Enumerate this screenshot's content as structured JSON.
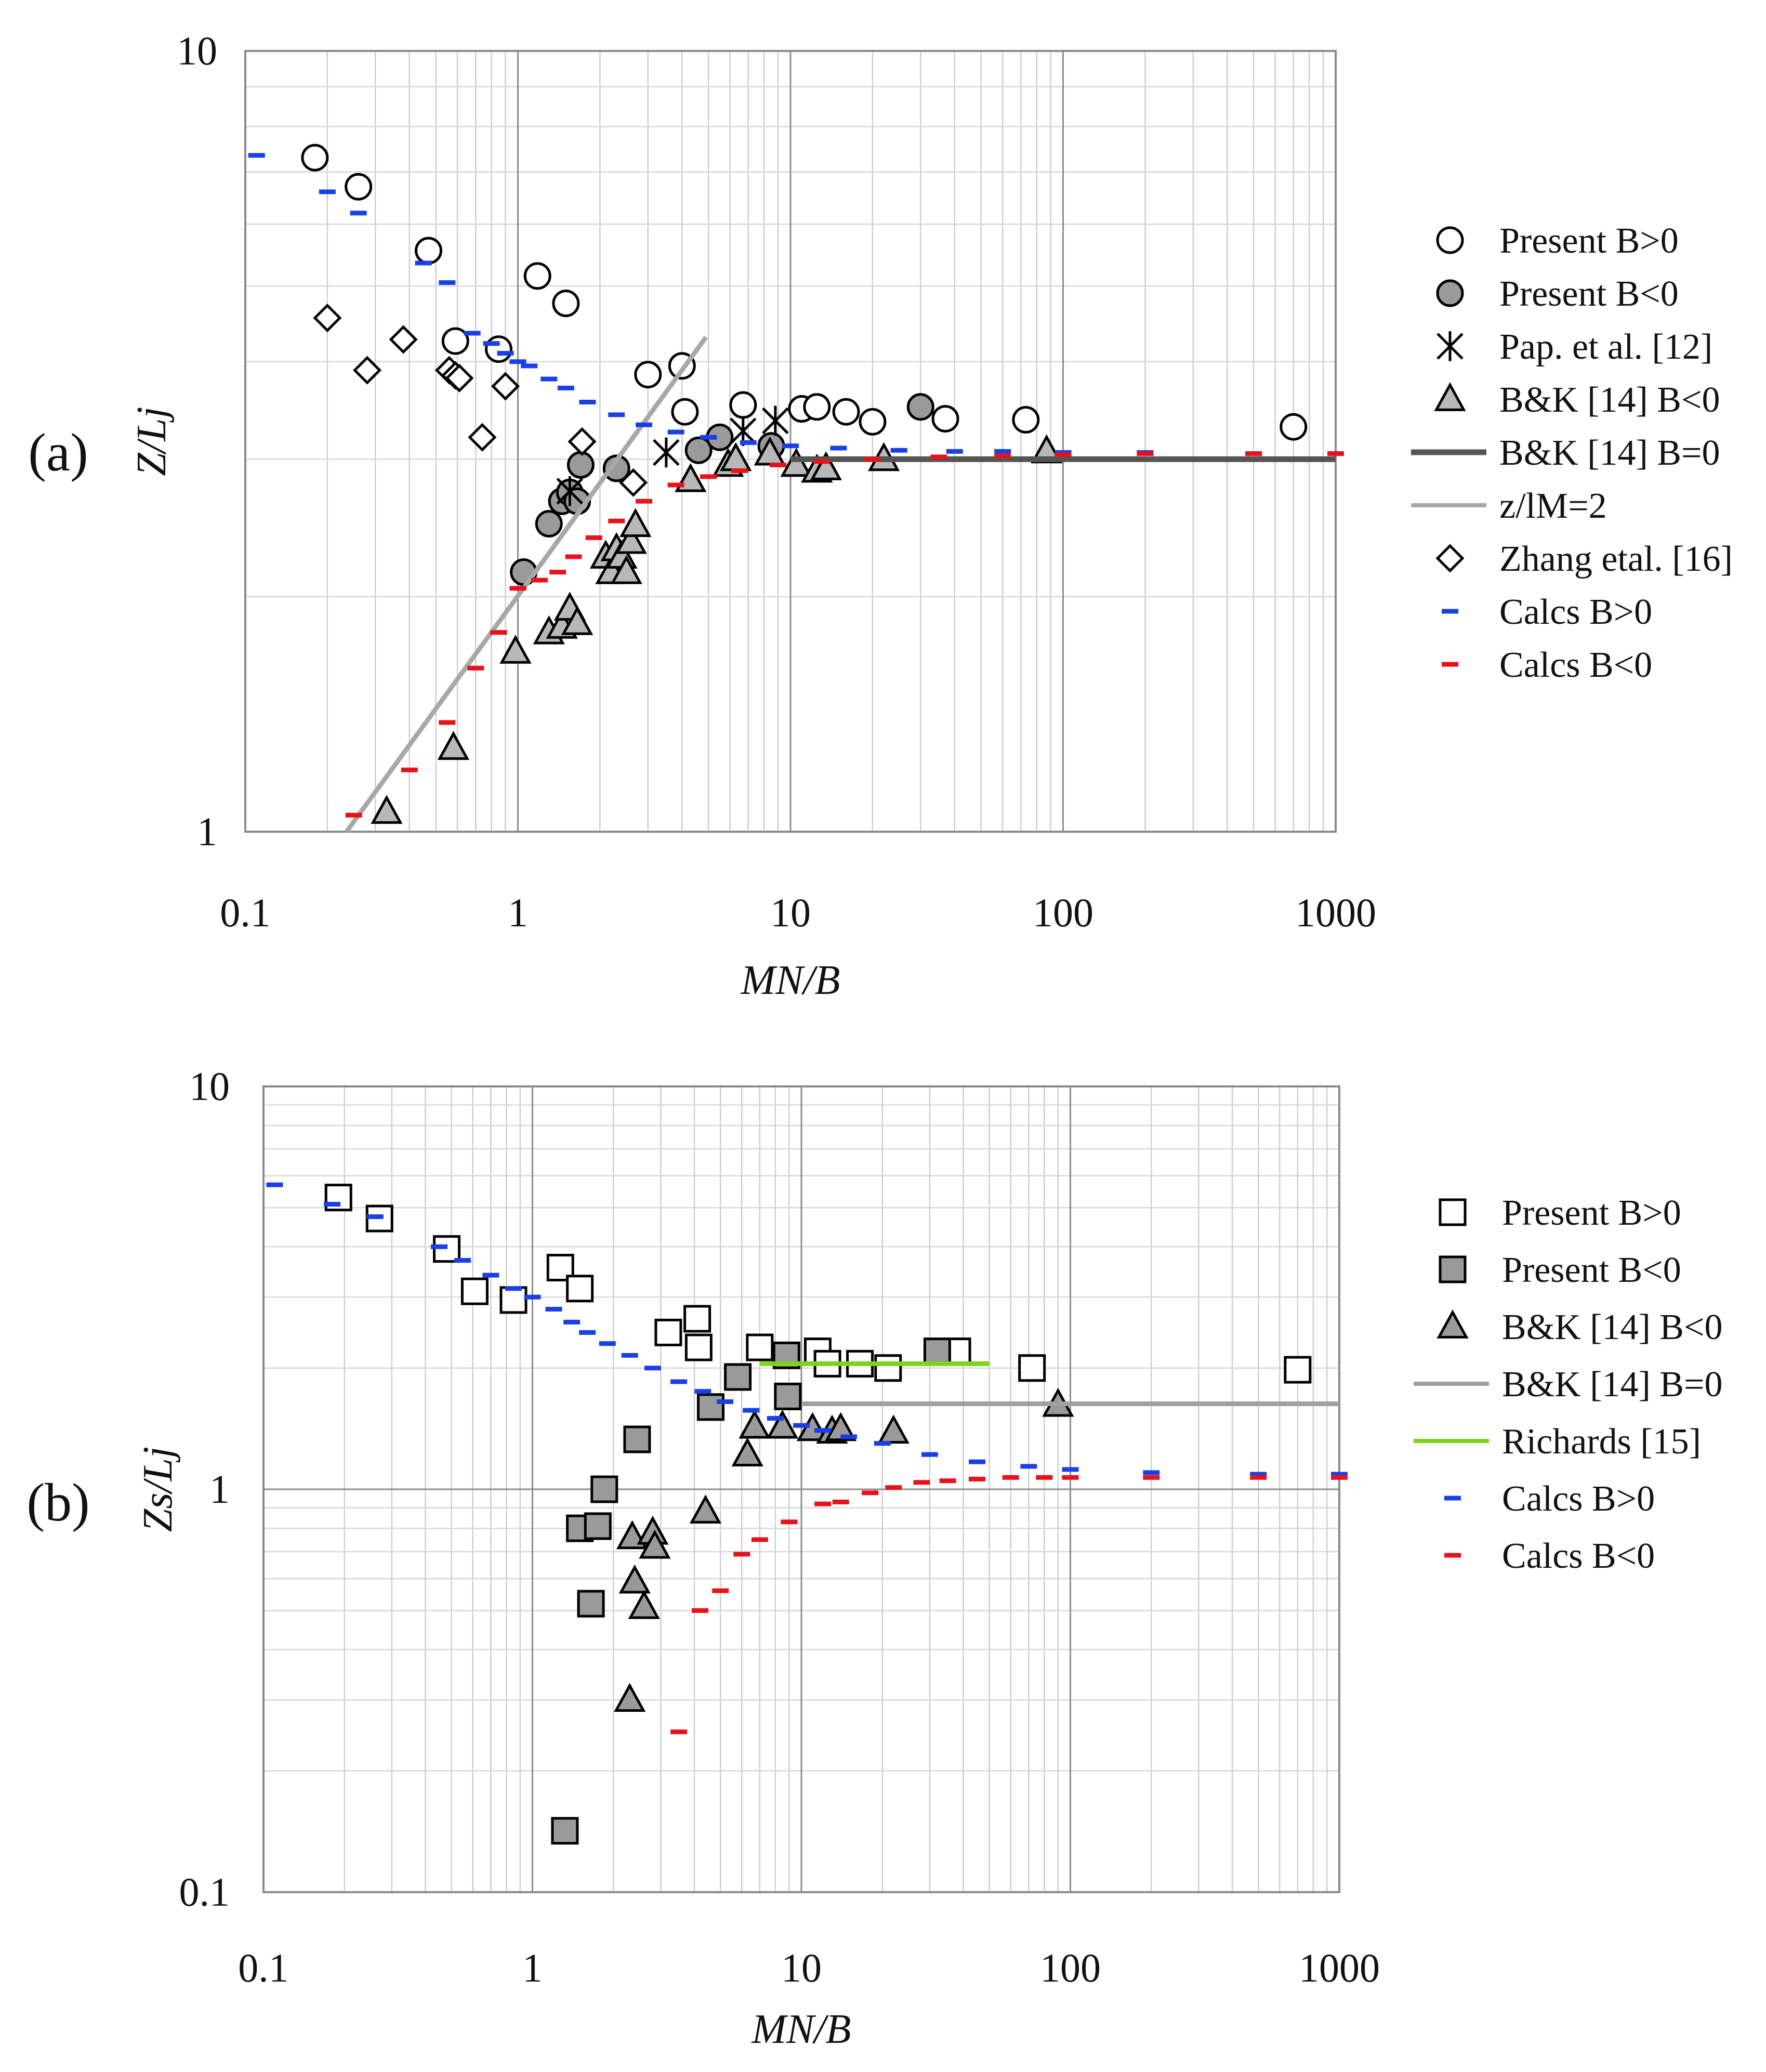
{
  "chart_data": [
    {
      "panel_label": "(a)",
      "type": "scatter",
      "xscale": "log",
      "yscale": "log",
      "xlim": [
        0.1,
        1000
      ],
      "ylim": [
        1,
        10
      ],
      "xlabel": "MN/B",
      "ylabel": "Z/Lj",
      "xticks": [
        "0.1",
        "1",
        "10",
        "100",
        "1000"
      ],
      "yticks": [
        "1",
        "10"
      ],
      "legend_position": "right",
      "series": [
        {
          "name": "Present B>0",
          "marker": "circle-open",
          "color": "#000000",
          "points": [
            [
              0.18,
              7.3
            ],
            [
              0.26,
              6.7
            ],
            [
              0.47,
              5.55
            ],
            [
              0.59,
              4.25
            ],
            [
              0.85,
              4.15
            ],
            [
              1.18,
              5.15
            ],
            [
              1.5,
              4.75
            ],
            [
              3.0,
              3.85
            ],
            [
              4.0,
              3.95
            ],
            [
              4.1,
              3.45
            ],
            [
              6.7,
              3.52
            ],
            [
              11,
              3.48
            ],
            [
              12.5,
              3.5
            ],
            [
              16,
              3.45
            ],
            [
              20,
              3.35
            ],
            [
              37,
              3.38
            ],
            [
              73,
              3.37
            ],
            [
              700,
              3.3
            ]
          ]
        },
        {
          "name": "Present B<0",
          "marker": "circle-filled",
          "color": "#9a9a9a",
          "points": [
            [
              1.05,
              2.15
            ],
            [
              1.3,
              2.48
            ],
            [
              1.45,
              2.65
            ],
            [
              1.55,
              2.72
            ],
            [
              1.65,
              2.65
            ],
            [
              1.7,
              2.95
            ],
            [
              2.3,
              2.92
            ],
            [
              4.6,
              3.08
            ],
            [
              5.5,
              3.2
            ],
            [
              8.5,
              3.12
            ],
            [
              30,
              3.5
            ]
          ]
        },
        {
          "name": "Pap. et al. [12]",
          "marker": "asterisk",
          "color": "#000000",
          "points": [
            [
              1.55,
              2.73
            ],
            [
              3.5,
              3.06
            ],
            [
              6.7,
              3.26
            ],
            [
              8.8,
              3.36
            ]
          ]
        },
        {
          "name": "B&K [14] B<0",
          "marker": "triangle-filled",
          "color": "#b8b8b8",
          "points": [
            [
              0.33,
              1.06
            ],
            [
              0.58,
              1.28
            ],
            [
              0.98,
              1.7
            ],
            [
              1.3,
              1.8
            ],
            [
              1.45,
              1.83
            ],
            [
              1.55,
              1.93
            ],
            [
              1.65,
              1.85
            ],
            [
              2.1,
              2.25
            ],
            [
              2.2,
              2.15
            ],
            [
              2.3,
              2.3
            ],
            [
              2.4,
              2.25
            ],
            [
              2.5,
              2.15
            ],
            [
              2.6,
              2.35
            ],
            [
              2.7,
              2.47
            ],
            [
              4.3,
              2.82
            ],
            [
              5.9,
              2.95
            ],
            [
              6.3,
              3.0
            ],
            [
              8.4,
              3.05
            ],
            [
              10.5,
              2.95
            ],
            [
              12.5,
              2.9
            ],
            [
              13.5,
              2.92
            ],
            [
              22,
              3.0
            ],
            [
              87,
              3.07
            ]
          ]
        },
        {
          "name": "B&K [14] B=0",
          "type": "line",
          "color": "#555555",
          "x": [
            10,
            1000
          ],
          "y": [
            3.0,
            3.0
          ]
        },
        {
          "name": "z/lM=2",
          "type": "line",
          "color": "#a8a8a8",
          "x": [
            0.235,
            4.9
          ],
          "y": [
            1.0,
            4.3
          ]
        },
        {
          "name": "Zhang etal. [16]",
          "marker": "diamond-open",
          "color": "#000000",
          "points": [
            [
              0.2,
              4.55
            ],
            [
              0.28,
              3.9
            ],
            [
              0.38,
              4.27
            ],
            [
              0.56,
              3.9
            ],
            [
              0.59,
              3.84
            ],
            [
              0.61,
              3.81
            ],
            [
              0.74,
              3.2
            ],
            [
              0.9,
              3.72
            ],
            [
              1.72,
              3.16
            ],
            [
              2.65,
              2.8
            ]
          ]
        },
        {
          "name": "Calcs B>0",
          "marker": "dash",
          "color": "#1a3fe6",
          "points": [
            [
              0.11,
              7.35
            ],
            [
              0.2,
              6.6
            ],
            [
              0.26,
              6.2
            ],
            [
              0.45,
              5.35
            ],
            [
              0.55,
              5.05
            ],
            [
              0.68,
              4.35
            ],
            [
              0.8,
              4.22
            ],
            [
              0.9,
              4.1
            ],
            [
              1.0,
              4.0
            ],
            [
              1.1,
              3.95
            ],
            [
              1.3,
              3.8
            ],
            [
              1.5,
              3.7
            ],
            [
              1.8,
              3.55
            ],
            [
              2.3,
              3.42
            ],
            [
              2.9,
              3.32
            ],
            [
              3.8,
              3.25
            ],
            [
              5.0,
              3.2
            ],
            [
              7.0,
              3.15
            ],
            [
              10,
              3.12
            ],
            [
              15,
              3.1
            ],
            [
              25,
              3.08
            ],
            [
              40,
              3.07
            ],
            [
              60,
              3.07
            ],
            [
              100,
              3.06
            ],
            [
              200,
              3.06
            ],
            [
              500,
              3.05
            ],
            [
              1000,
              3.05
            ]
          ]
        },
        {
          "name": "Calcs B<0",
          "marker": "dash",
          "color": "#e8121a",
          "points": [
            [
              0.25,
              1.05
            ],
            [
              0.4,
              1.2
            ],
            [
              0.55,
              1.38
            ],
            [
              0.7,
              1.62
            ],
            [
              0.85,
              1.8
            ],
            [
              1.0,
              2.05
            ],
            [
              1.2,
              2.1
            ],
            [
              1.4,
              2.15
            ],
            [
              1.6,
              2.25
            ],
            [
              1.9,
              2.38
            ],
            [
              2.3,
              2.5
            ],
            [
              2.9,
              2.65
            ],
            [
              3.8,
              2.78
            ],
            [
              5.0,
              2.85
            ],
            [
              6.5,
              2.9
            ],
            [
              9,
              2.95
            ],
            [
              13,
              2.98
            ],
            [
              20,
              3.0
            ],
            [
              35,
              3.02
            ],
            [
              60,
              3.03
            ],
            [
              100,
              3.04
            ],
            [
              200,
              3.05
            ],
            [
              500,
              3.05
            ],
            [
              1000,
              3.05
            ]
          ]
        }
      ]
    },
    {
      "panel_label": "(b)",
      "type": "scatter",
      "xscale": "log",
      "yscale": "log",
      "xlim": [
        0.1,
        1000
      ],
      "ylim": [
        0.1,
        10
      ],
      "xlabel": "MN/B",
      "ylabel": "Zs/Lj",
      "xticks": [
        "0.1",
        "1",
        "10",
        "100",
        "1000"
      ],
      "yticks": [
        "0.1",
        "1",
        "10"
      ],
      "legend_position": "right",
      "series": [
        {
          "name": "Present B>0",
          "marker": "square-open",
          "color": "#000000",
          "points": [
            [
              0.19,
              5.3
            ],
            [
              0.27,
              4.7
            ],
            [
              0.48,
              3.95
            ],
            [
              0.61,
              3.1
            ],
            [
              0.85,
              2.95
            ],
            [
              1.27,
              3.55
            ],
            [
              1.5,
              3.15
            ],
            [
              3.2,
              2.45
            ],
            [
              4.1,
              2.65
            ],
            [
              4.15,
              2.25
            ],
            [
              7.0,
              2.25
            ],
            [
              11.5,
              2.2
            ],
            [
              12.5,
              2.05
            ],
            [
              16.5,
              2.05
            ],
            [
              21,
              2.0
            ],
            [
              38,
              2.2
            ],
            [
              72,
              2.0
            ],
            [
              700,
              1.98
            ]
          ]
        },
        {
          "name": "Present B<0",
          "marker": "square-filled",
          "color": "#9a9a9a",
          "points": [
            [
              1.32,
              0.142
            ],
            [
              1.5,
              0.8
            ],
            [
              1.65,
              0.52
            ],
            [
              1.75,
              0.81
            ],
            [
              1.85,
              1.0
            ],
            [
              2.45,
              1.33
            ],
            [
              4.6,
              1.6
            ],
            [
              5.8,
              1.9
            ],
            [
              8.8,
              2.15
            ],
            [
              8.9,
              1.7
            ],
            [
              32,
              2.2
            ]
          ]
        },
        {
          "name": "B&K [14] B<0",
          "marker": "triangle-filled",
          "color": "#9a9a9a",
          "points": [
            [
              2.3,
              0.3
            ],
            [
              2.35,
              0.76
            ],
            [
              2.4,
              0.59
            ],
            [
              2.6,
              0.51
            ],
            [
              2.8,
              0.78
            ],
            [
              2.85,
              0.72
            ],
            [
              4.4,
              0.88
            ],
            [
              6.3,
              1.22
            ],
            [
              6.7,
              1.43
            ],
            [
              8.5,
              1.43
            ],
            [
              11,
              1.41
            ],
            [
              13,
              1.39
            ],
            [
              14,
              1.41
            ],
            [
              22,
              1.39
            ],
            [
              90,
              1.62
            ]
          ]
        },
        {
          "name": "B&K [14] B=0",
          "type": "line",
          "color": "#a0a0a0",
          "x": [
            10,
            1000
          ],
          "y": [
            1.63,
            1.63
          ]
        },
        {
          "name": "Richards [15]",
          "type": "line",
          "color": "#7ed321",
          "x": [
            7,
            50
          ],
          "y": [
            2.05,
            2.05
          ]
        },
        {
          "name": "Calcs B>0",
          "marker": "dash",
          "color": "#1a3fe6",
          "points": [
            [
              0.11,
              5.7
            ],
            [
              0.18,
              5.1
            ],
            [
              0.26,
              4.75
            ],
            [
              0.45,
              4.0
            ],
            [
              0.55,
              3.7
            ],
            [
              0.7,
              3.4
            ],
            [
              0.85,
              3.15
            ],
            [
              1.0,
              3.0
            ],
            [
              1.2,
              2.8
            ],
            [
              1.4,
              2.6
            ],
            [
              1.6,
              2.45
            ],
            [
              1.9,
              2.3
            ],
            [
              2.3,
              2.15
            ],
            [
              2.8,
              2.0
            ],
            [
              3.5,
              1.85
            ],
            [
              4.3,
              1.75
            ],
            [
              5.2,
              1.65
            ],
            [
              6.5,
              1.57
            ],
            [
              8,
              1.5
            ],
            [
              10,
              1.44
            ],
            [
              12,
              1.4
            ],
            [
              15,
              1.35
            ],
            [
              20,
              1.3
            ],
            [
              30,
              1.22
            ],
            [
              45,
              1.17
            ],
            [
              70,
              1.14
            ],
            [
              100,
              1.12
            ],
            [
              200,
              1.1
            ],
            [
              500,
              1.09
            ],
            [
              1000,
              1.09
            ]
          ]
        },
        {
          "name": "Calcs B<0",
          "marker": "dash",
          "color": "#e8121a",
          "points": [
            [
              3.5,
              0.25
            ],
            [
              4.2,
              0.5
            ],
            [
              5.0,
              0.56
            ],
            [
              6.0,
              0.69
            ],
            [
              7.0,
              0.75
            ],
            [
              9,
              0.83
            ],
            [
              12,
              0.92
            ],
            [
              14,
              0.93
            ],
            [
              18,
              0.98
            ],
            [
              22,
              1.01
            ],
            [
              28,
              1.04
            ],
            [
              35,
              1.05
            ],
            [
              45,
              1.06
            ],
            [
              60,
              1.07
            ],
            [
              80,
              1.07
            ],
            [
              100,
              1.07
            ],
            [
              200,
              1.07
            ],
            [
              500,
              1.07
            ],
            [
              1000,
              1.07
            ]
          ]
        }
      ]
    }
  ]
}
